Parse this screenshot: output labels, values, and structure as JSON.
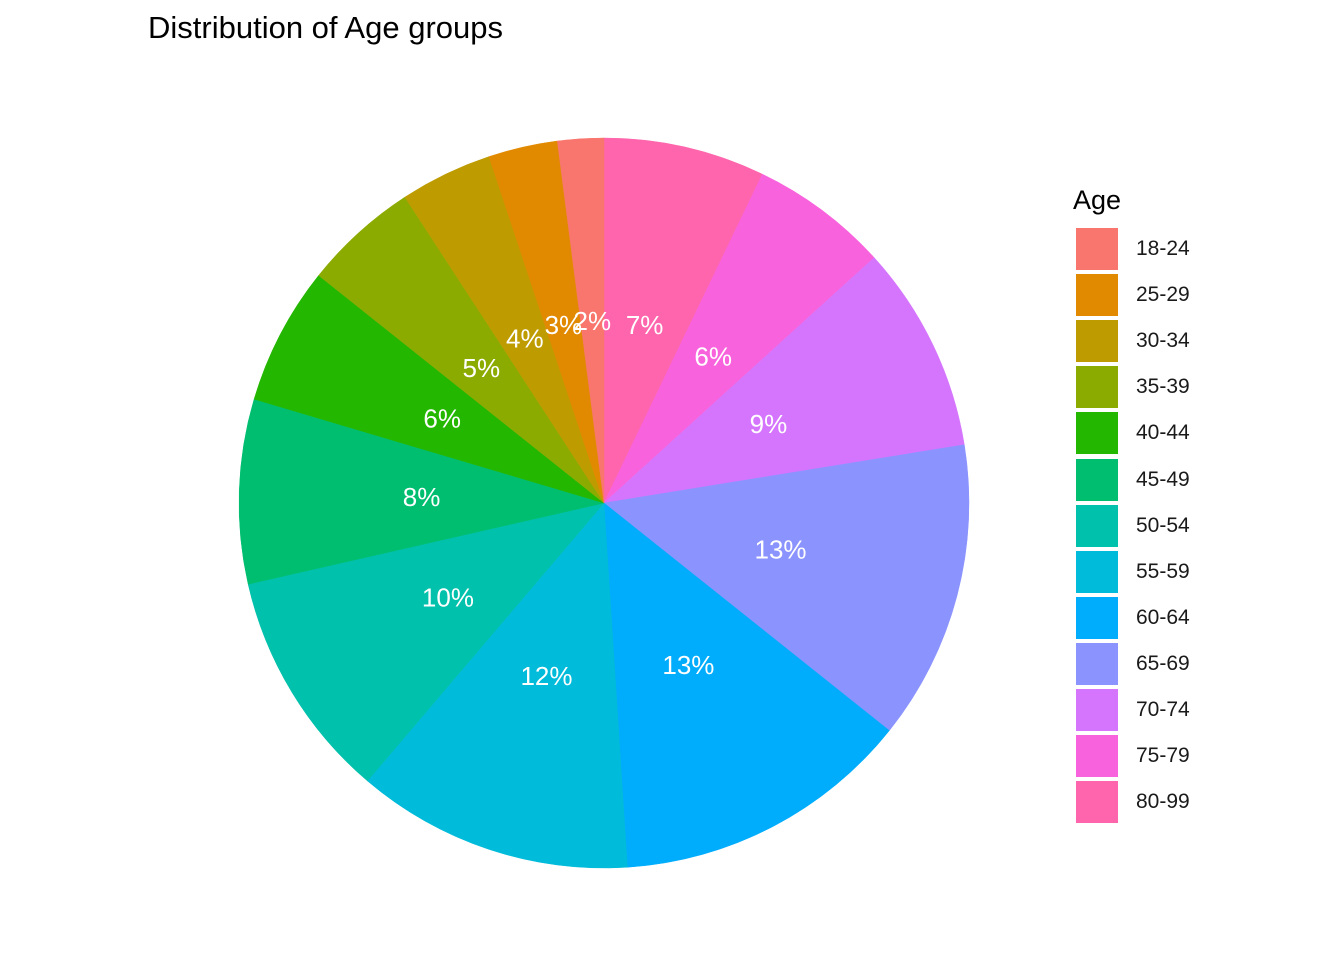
{
  "chart_data": {
    "type": "pie",
    "title": "Distribution of Age groups",
    "legend_title": "Age",
    "legend_position": "right",
    "start": "12 o'clock, clockwise (reverse legend order)",
    "categories": [
      "18-24",
      "25-29",
      "30-34",
      "35-39",
      "40-44",
      "45-49",
      "50-54",
      "55-59",
      "60-64",
      "65-69",
      "70-74",
      "75-79",
      "80-99"
    ],
    "values": [
      2,
      3,
      4,
      5,
      6,
      8,
      10,
      12,
      13,
      13,
      9,
      6,
      7
    ],
    "labels": [
      "2%",
      "3%",
      "4%",
      "5%",
      "6%",
      "8%",
      "10%",
      "12%",
      "13%",
      "13%",
      "9%",
      "6%",
      "7%"
    ],
    "colors": [
      "#F8766D",
      "#E18A00",
      "#BE9C00",
      "#8CAB00",
      "#24B700",
      "#00BE70",
      "#00C1AB",
      "#00BBDA",
      "#00ACFC",
      "#8B93FF",
      "#D575FE",
      "#F962DD",
      "#FF65AC"
    ]
  }
}
